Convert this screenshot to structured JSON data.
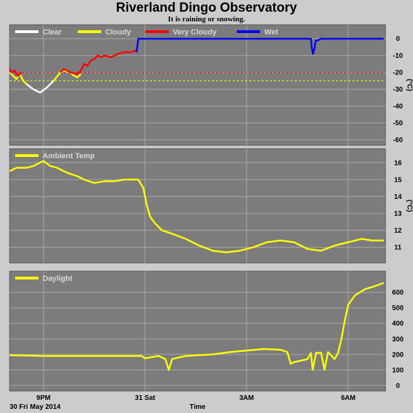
{
  "header": {
    "title": "Riverland Dingo Observatory",
    "subtitle": "It is raining or snowing."
  },
  "footer": {
    "date_label": "30 Fri May 2014",
    "time_label": "Time"
  },
  "colors": {
    "plot_bg": "#7c7c7c",
    "page_bg": "#cccccc",
    "grid": "#a8a8a8"
  },
  "chart_data": [
    {
      "type": "line",
      "panel": "sky-temperature",
      "ylabel": "(°C)",
      "ylim": [
        -60,
        5
      ],
      "yticks": [
        0,
        -10,
        -20,
        -30,
        -40,
        -50,
        -60
      ],
      "thresholds": [
        {
          "value": -20,
          "color": "#ff0000"
        },
        {
          "value": -25,
          "color": "#ffff00"
        }
      ],
      "legend": [
        {
          "label": "Clear",
          "color": "#ffffff"
        },
        {
          "label": "Cloudy",
          "color": "#ffff00"
        },
        {
          "label": "Very Cloudy",
          "color": "#ff0000"
        },
        {
          "label": "Wet",
          "color": "#0000ff"
        }
      ],
      "series": [
        {
          "name": "Cloudy",
          "color": "#ffff00",
          "points": [
            [
              -1.0,
              -20
            ],
            [
              -0.9,
              -22
            ],
            [
              -0.8,
              -24
            ],
            [
              -0.7,
              -21
            ],
            [
              -0.6,
              -25
            ],
            [
              -0.5,
              -27
            ]
          ]
        },
        {
          "name": "Very Cloudy",
          "color": "#ff0000",
          "points": [
            [
              -1.0,
              -18
            ],
            [
              -0.95,
              -20
            ],
            [
              -0.85,
              -19
            ],
            [
              -0.75,
              -22
            ],
            [
              -0.65,
              -20
            ]
          ]
        },
        {
          "name": "Clear",
          "color": "#ffffff",
          "points": [
            [
              -0.5,
              -27
            ],
            [
              -0.3,
              -30
            ],
            [
              -0.1,
              -32
            ],
            [
              0.1,
              -29
            ],
            [
              0.3,
              -25
            ]
          ]
        },
        {
          "name": "Cloudy",
          "color": "#ffff00",
          "points": [
            [
              0.3,
              -25
            ],
            [
              0.5,
              -20
            ],
            [
              0.6,
              -19
            ],
            [
              0.8,
              -20
            ],
            [
              0.9,
              -22
            ],
            [
              1.0,
              -23
            ],
            [
              1.1,
              -21
            ]
          ]
        },
        {
          "name": "Very Cloudy",
          "color": "#ff0000",
          "points": [
            [
              0.5,
              -20
            ],
            [
              0.6,
              -18
            ],
            [
              0.8,
              -20
            ],
            [
              1.0,
              -21
            ],
            [
              1.1,
              -19
            ],
            [
              1.2,
              -15
            ],
            [
              1.3,
              -16
            ],
            [
              1.4,
              -13
            ],
            [
              1.5,
              -12
            ],
            [
              1.6,
              -10
            ],
            [
              1.7,
              -11
            ],
            [
              1.8,
              -10
            ],
            [
              2.0,
              -11
            ],
            [
              2.2,
              -9
            ],
            [
              2.4,
              -8
            ],
            [
              2.6,
              -8
            ],
            [
              2.7,
              -7
            ],
            [
              2.75,
              -8
            ]
          ]
        },
        {
          "name": "Wet",
          "color": "#0000ff",
          "points": [
            [
              2.75,
              -8
            ],
            [
              2.8,
              0
            ],
            [
              4.0,
              0
            ],
            [
              6.0,
              0
            ],
            [
              7.9,
              0
            ],
            [
              7.92,
              -5
            ],
            [
              7.96,
              -9
            ],
            [
              8.0,
              -6
            ],
            [
              8.04,
              -1
            ],
            [
              8.1,
              -1
            ],
            [
              8.2,
              0
            ],
            [
              9.0,
              0
            ],
            [
              10.05,
              0
            ]
          ]
        }
      ]
    },
    {
      "type": "line",
      "panel": "ambient-temperature",
      "ylabel": "(°C)",
      "ylim": [
        10.4,
        16.5
      ],
      "yticks": [
        11,
        12,
        13,
        14,
        15,
        16
      ],
      "legend": [
        {
          "label": "Ambient Temp",
          "color": "#ffff00"
        }
      ],
      "series": [
        {
          "name": "Ambient Temp",
          "color": "#ffff00",
          "points": [
            [
              -1.0,
              15.5
            ],
            [
              -0.8,
              15.7
            ],
            [
              -0.5,
              15.7
            ],
            [
              -0.3,
              15.8
            ],
            [
              -0.1,
              16.0
            ],
            [
              0.0,
              16.1
            ],
            [
              0.2,
              15.8
            ],
            [
              0.4,
              15.7
            ],
            [
              0.7,
              15.4
            ],
            [
              1.0,
              15.2
            ],
            [
              1.2,
              15.0
            ],
            [
              1.5,
              14.8
            ],
            [
              1.8,
              14.9
            ],
            [
              2.1,
              14.9
            ],
            [
              2.4,
              15.0
            ],
            [
              2.6,
              15.0
            ],
            [
              2.8,
              15.0
            ],
            [
              2.95,
              14.5
            ],
            [
              3.05,
              13.5
            ],
            [
              3.15,
              12.8
            ],
            [
              3.3,
              12.4
            ],
            [
              3.5,
              12.0
            ],
            [
              3.8,
              11.8
            ],
            [
              4.2,
              11.5
            ],
            [
              4.6,
              11.1
            ],
            [
              5.0,
              10.8
            ],
            [
              5.4,
              10.7
            ],
            [
              5.8,
              10.8
            ],
            [
              6.2,
              11.0
            ],
            [
              6.6,
              11.3
            ],
            [
              7.0,
              11.4
            ],
            [
              7.4,
              11.3
            ],
            [
              7.8,
              10.9
            ],
            [
              8.2,
              10.8
            ],
            [
              8.6,
              11.1
            ],
            [
              9.0,
              11.3
            ],
            [
              9.4,
              11.5
            ],
            [
              9.7,
              11.4
            ],
            [
              10.05,
              11.4
            ]
          ]
        }
      ]
    },
    {
      "type": "line",
      "panel": "daylight",
      "ylabel": "",
      "ylim": [
        0,
        700
      ],
      "yticks": [
        0,
        100,
        200,
        300,
        400,
        500,
        600
      ],
      "legend": [
        {
          "label": "Daylight",
          "color": "#ffff00"
        }
      ],
      "series": [
        {
          "name": "Daylight",
          "color": "#ffff00",
          "points": [
            [
              -1.0,
              195
            ],
            [
              0.0,
              190
            ],
            [
              1.0,
              190
            ],
            [
              2.0,
              190
            ],
            [
              2.9,
              190
            ],
            [
              3.0,
              175
            ],
            [
              3.4,
              190
            ],
            [
              3.6,
              170
            ],
            [
              3.7,
              100
            ],
            [
              3.8,
              170
            ],
            [
              4.2,
              190
            ],
            [
              5.0,
              200
            ],
            [
              5.5,
              215
            ],
            [
              6.0,
              225
            ],
            [
              6.5,
              235
            ],
            [
              7.0,
              230
            ],
            [
              7.2,
              215
            ],
            [
              7.3,
              140
            ],
            [
              7.4,
              150
            ],
            [
              7.6,
              160
            ],
            [
              7.8,
              170
            ],
            [
              7.9,
              210
            ],
            [
              7.95,
              100
            ],
            [
              8.05,
              210
            ],
            [
              8.2,
              210
            ],
            [
              8.3,
              100
            ],
            [
              8.4,
              215
            ],
            [
              8.6,
              170
            ],
            [
              8.7,
              210
            ],
            [
              8.8,
              300
            ],
            [
              8.9,
              420
            ],
            [
              9.0,
              520
            ],
            [
              9.2,
              580
            ],
            [
              9.5,
              620
            ],
            [
              9.8,
              640
            ],
            [
              10.05,
              660
            ]
          ]
        }
      ]
    }
  ],
  "x_axis": {
    "range": [
      -1.0,
      10.1
    ],
    "gridlines": [
      0,
      3,
      6,
      9
    ],
    "ticks": [
      {
        "value": 0,
        "label": "9PM"
      },
      {
        "value": 3,
        "label": "31 Sat"
      },
      {
        "value": 6,
        "label": "3AM"
      },
      {
        "value": 9,
        "label": "6AM"
      }
    ]
  }
}
